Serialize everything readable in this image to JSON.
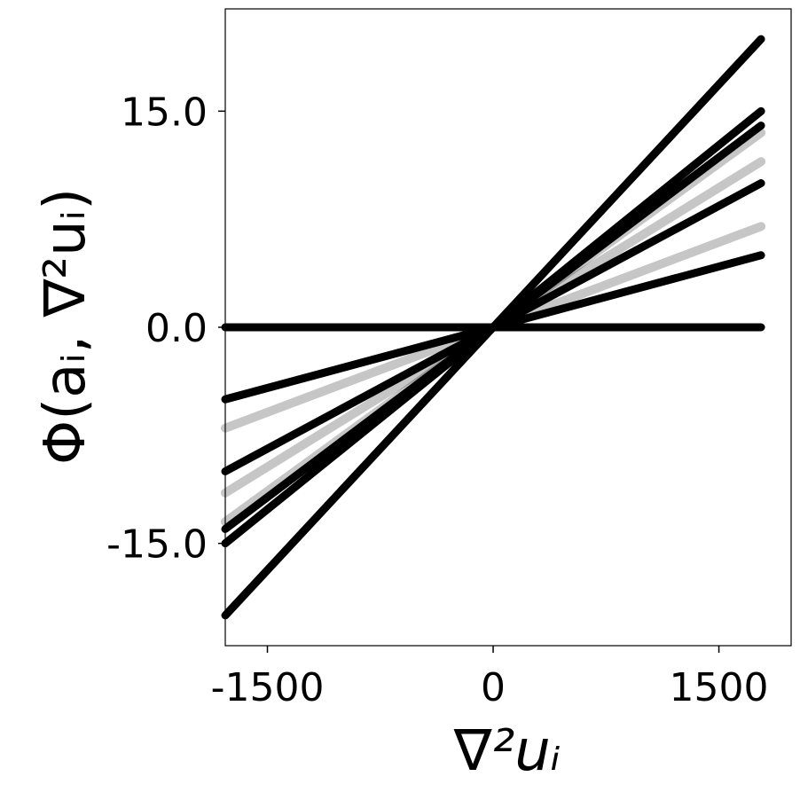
{
  "chart_data": {
    "type": "scatter",
    "title": "",
    "xlabel": "∇²uᵢ",
    "ylabel": "Φ(aᵢ, ∇²uᵢ)",
    "xlim": [
      -1780,
      1980
    ],
    "ylim": [
      -22.1,
      22.1
    ],
    "xticks": [
      -1500,
      0,
      1500
    ],
    "xtick_labels": [
      "-1500",
      "0",
      "1500"
    ],
    "yticks": [
      -15,
      0,
      15
    ],
    "ytick_labels": [
      "-15.0",
      "0.0",
      "15.0"
    ],
    "grid": false,
    "legend": "none",
    "marker_color": "#000000",
    "series": [
      {
        "x": [
          -1780,
          1780
        ],
        "y": [
          -20,
          20
        ]
      },
      {
        "x": [
          -1780,
          1780
        ],
        "y": [
          -15,
          15
        ]
      },
      {
        "x": [
          -1780,
          1780
        ],
        "y": [
          -14,
          14
        ]
      },
      {
        "x": [
          -1780,
          1780
        ],
        "y": [
          -10,
          10
        ]
      },
      {
        "x": [
          -1780,
          1780
        ],
        "y": [
          -5,
          5
        ]
      },
      {
        "x": [
          -1780,
          1780
        ],
        "y": [
          0,
          0
        ]
      }
    ],
    "faint_series": [
      {
        "x": [
          -1780,
          1780
        ],
        "y": [
          -13.5,
          13.5
        ]
      },
      {
        "x": [
          -1780,
          1780
        ],
        "y": [
          -11.5,
          11.5
        ]
      },
      {
        "x": [
          -1780,
          1780
        ],
        "y": [
          -7,
          7
        ]
      }
    ]
  }
}
